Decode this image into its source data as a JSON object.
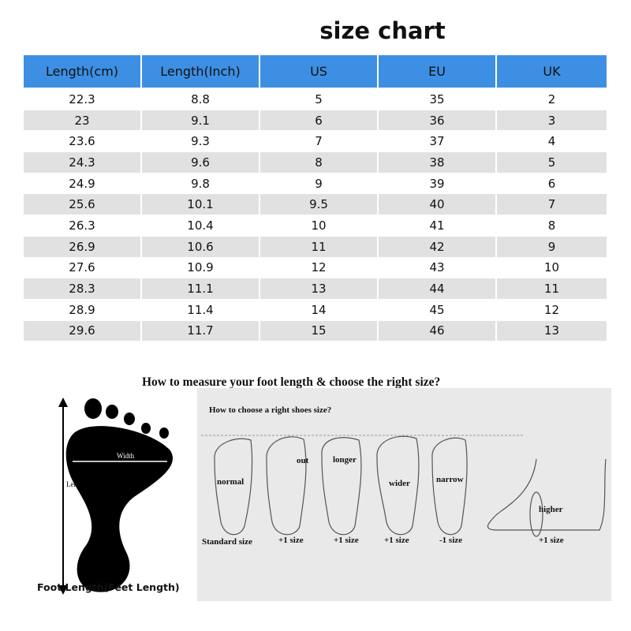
{
  "title": "size chart",
  "table": {
    "headers": [
      "Length(cm)",
      "Length(Inch)",
      "US",
      "EU",
      "UK"
    ],
    "rows": [
      [
        "22.3",
        "8.8",
        "5",
        "35",
        "2"
      ],
      [
        "23",
        "9.1",
        "6",
        "36",
        "3"
      ],
      [
        "23.6",
        "9.3",
        "7",
        "37",
        "4"
      ],
      [
        "24.3",
        "9.6",
        "8",
        "38",
        "5"
      ],
      [
        "24.9",
        "9.8",
        "9",
        "39",
        "6"
      ],
      [
        "25.6",
        "10.1",
        "9.5",
        "40",
        "7"
      ],
      [
        "26.3",
        "10.4",
        "10",
        "41",
        "8"
      ],
      [
        "26.9",
        "10.6",
        "11",
        "42",
        "9"
      ],
      [
        "27.6",
        "10.9",
        "12",
        "43",
        "10"
      ],
      [
        "28.3",
        "11.1",
        "13",
        "44",
        "11"
      ],
      [
        "28.9",
        "11.4",
        "14",
        "45",
        "12"
      ],
      [
        "29.6",
        "11.7",
        "15",
        "46",
        "13"
      ]
    ],
    "header_color": "#3d8fe3",
    "stripe_color": "#e1e1e1"
  },
  "measure": {
    "heading": "How to measure your foot length & choose the right size?",
    "width_label": "Width",
    "length_label": "Length",
    "caption": "Foot Length(Feet Length)"
  },
  "choose": {
    "heading": "How to choose a right shoes size?",
    "feet": [
      {
        "label": "normal",
        "size": "Standard size"
      },
      {
        "label": "out",
        "size": "+1 size"
      },
      {
        "label": "longer",
        "size": "+1 size"
      },
      {
        "label": "wider",
        "size": "+1 size"
      },
      {
        "label": "narrow",
        "size": "-1 size"
      },
      {
        "label": "higher",
        "size": "+1 size"
      }
    ]
  }
}
